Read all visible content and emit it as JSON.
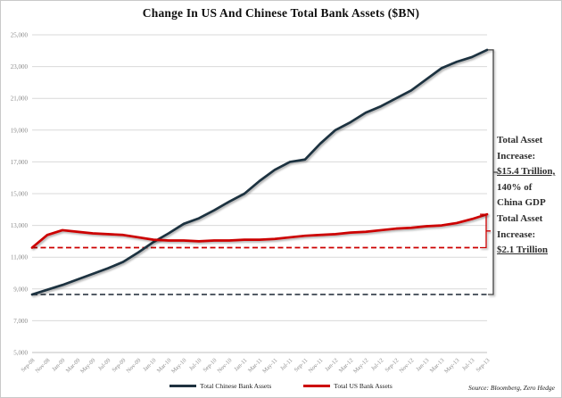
{
  "title": "Change In US And Chinese Total Bank Assets ($BN)",
  "source_note": "Source: Bloomberg, Zero Hedge",
  "colors": {
    "china_line": "#1f3240",
    "us_line": "#cc0000",
    "gridline": "#d9d9d9",
    "axis_line": "#bfbfbf",
    "axis_text": "#8c8c8c",
    "annotation_text": "#2e2e2e",
    "china_baseline_dash": "#3c4650",
    "us_baseline_dash": "#cc0000",
    "bracket_black": "#3f3f3f",
    "bracket_red": "#cc0000"
  },
  "annotations": [
    {
      "id": "china-total-asset-increase",
      "lines": [
        "Total Asset",
        "Increase:",
        "$15.4 Trillion,",
        "140% of",
        "China GDP"
      ],
      "underline_line_index": 2
    },
    {
      "id": "us-total-asset-increase",
      "lines": [
        "Total Asset",
        "Increase:",
        "$2.1 Trillion"
      ],
      "underline_line_index": 2
    }
  ],
  "chart_data": {
    "type": "line",
    "title": "Change In US And Chinese Total Bank Assets ($BN)",
    "xlabel": "",
    "ylabel": "",
    "ylim": [
      5000,
      25000
    ],
    "ytick_step": 2000,
    "grid": true,
    "legend_position": "bottom",
    "categories": [
      "Sep-08",
      "Nov-08",
      "Jan-09",
      "Mar-09",
      "May-09",
      "Jul-09",
      "Sep-09",
      "Nov-09",
      "Jan-10",
      "Mar-10",
      "May-10",
      "Jul-10",
      "Sep-10",
      "Nov-10",
      "Jan-11",
      "Mar-11",
      "May-11",
      "Jul-11",
      "Sep-11",
      "Nov-11",
      "Jan-12",
      "Mar-12",
      "May-12",
      "Jul-12",
      "Sep-12",
      "Nov-12",
      "Jan-13",
      "Mar-13",
      "May-13",
      "Jul-13",
      "Sep-13"
    ],
    "series": [
      {
        "name": "Total Chinese Bank Assets",
        "color": "#1f3240",
        "values": [
          8650,
          8950,
          9250,
          9600,
          9950,
          10300,
          10700,
          11300,
          11950,
          12500,
          13100,
          13450,
          13950,
          14500,
          15000,
          15800,
          16500,
          17000,
          17150,
          18150,
          19000,
          19500,
          20100,
          20500,
          21000,
          21500,
          22200,
          22900,
          23300,
          23600,
          24050
        ]
      },
      {
        "name": "Total US Bank Assets",
        "color": "#cc0000",
        "values": [
          11600,
          12400,
          12700,
          12600,
          12500,
          12450,
          12400,
          12250,
          12100,
          12050,
          12050,
          12000,
          12050,
          12050,
          12100,
          12100,
          12150,
          12250,
          12350,
          12400,
          12450,
          12550,
          12600,
          12700,
          12800,
          12850,
          12950,
          13000,
          13150,
          13400,
          13700
        ]
      }
    ],
    "baselines": [
      {
        "series": "Total Chinese Bank Assets",
        "value": 8650,
        "style": "dashed"
      },
      {
        "series": "Total US Bank Assets",
        "value": 11600,
        "style": "dashed"
      }
    ]
  }
}
